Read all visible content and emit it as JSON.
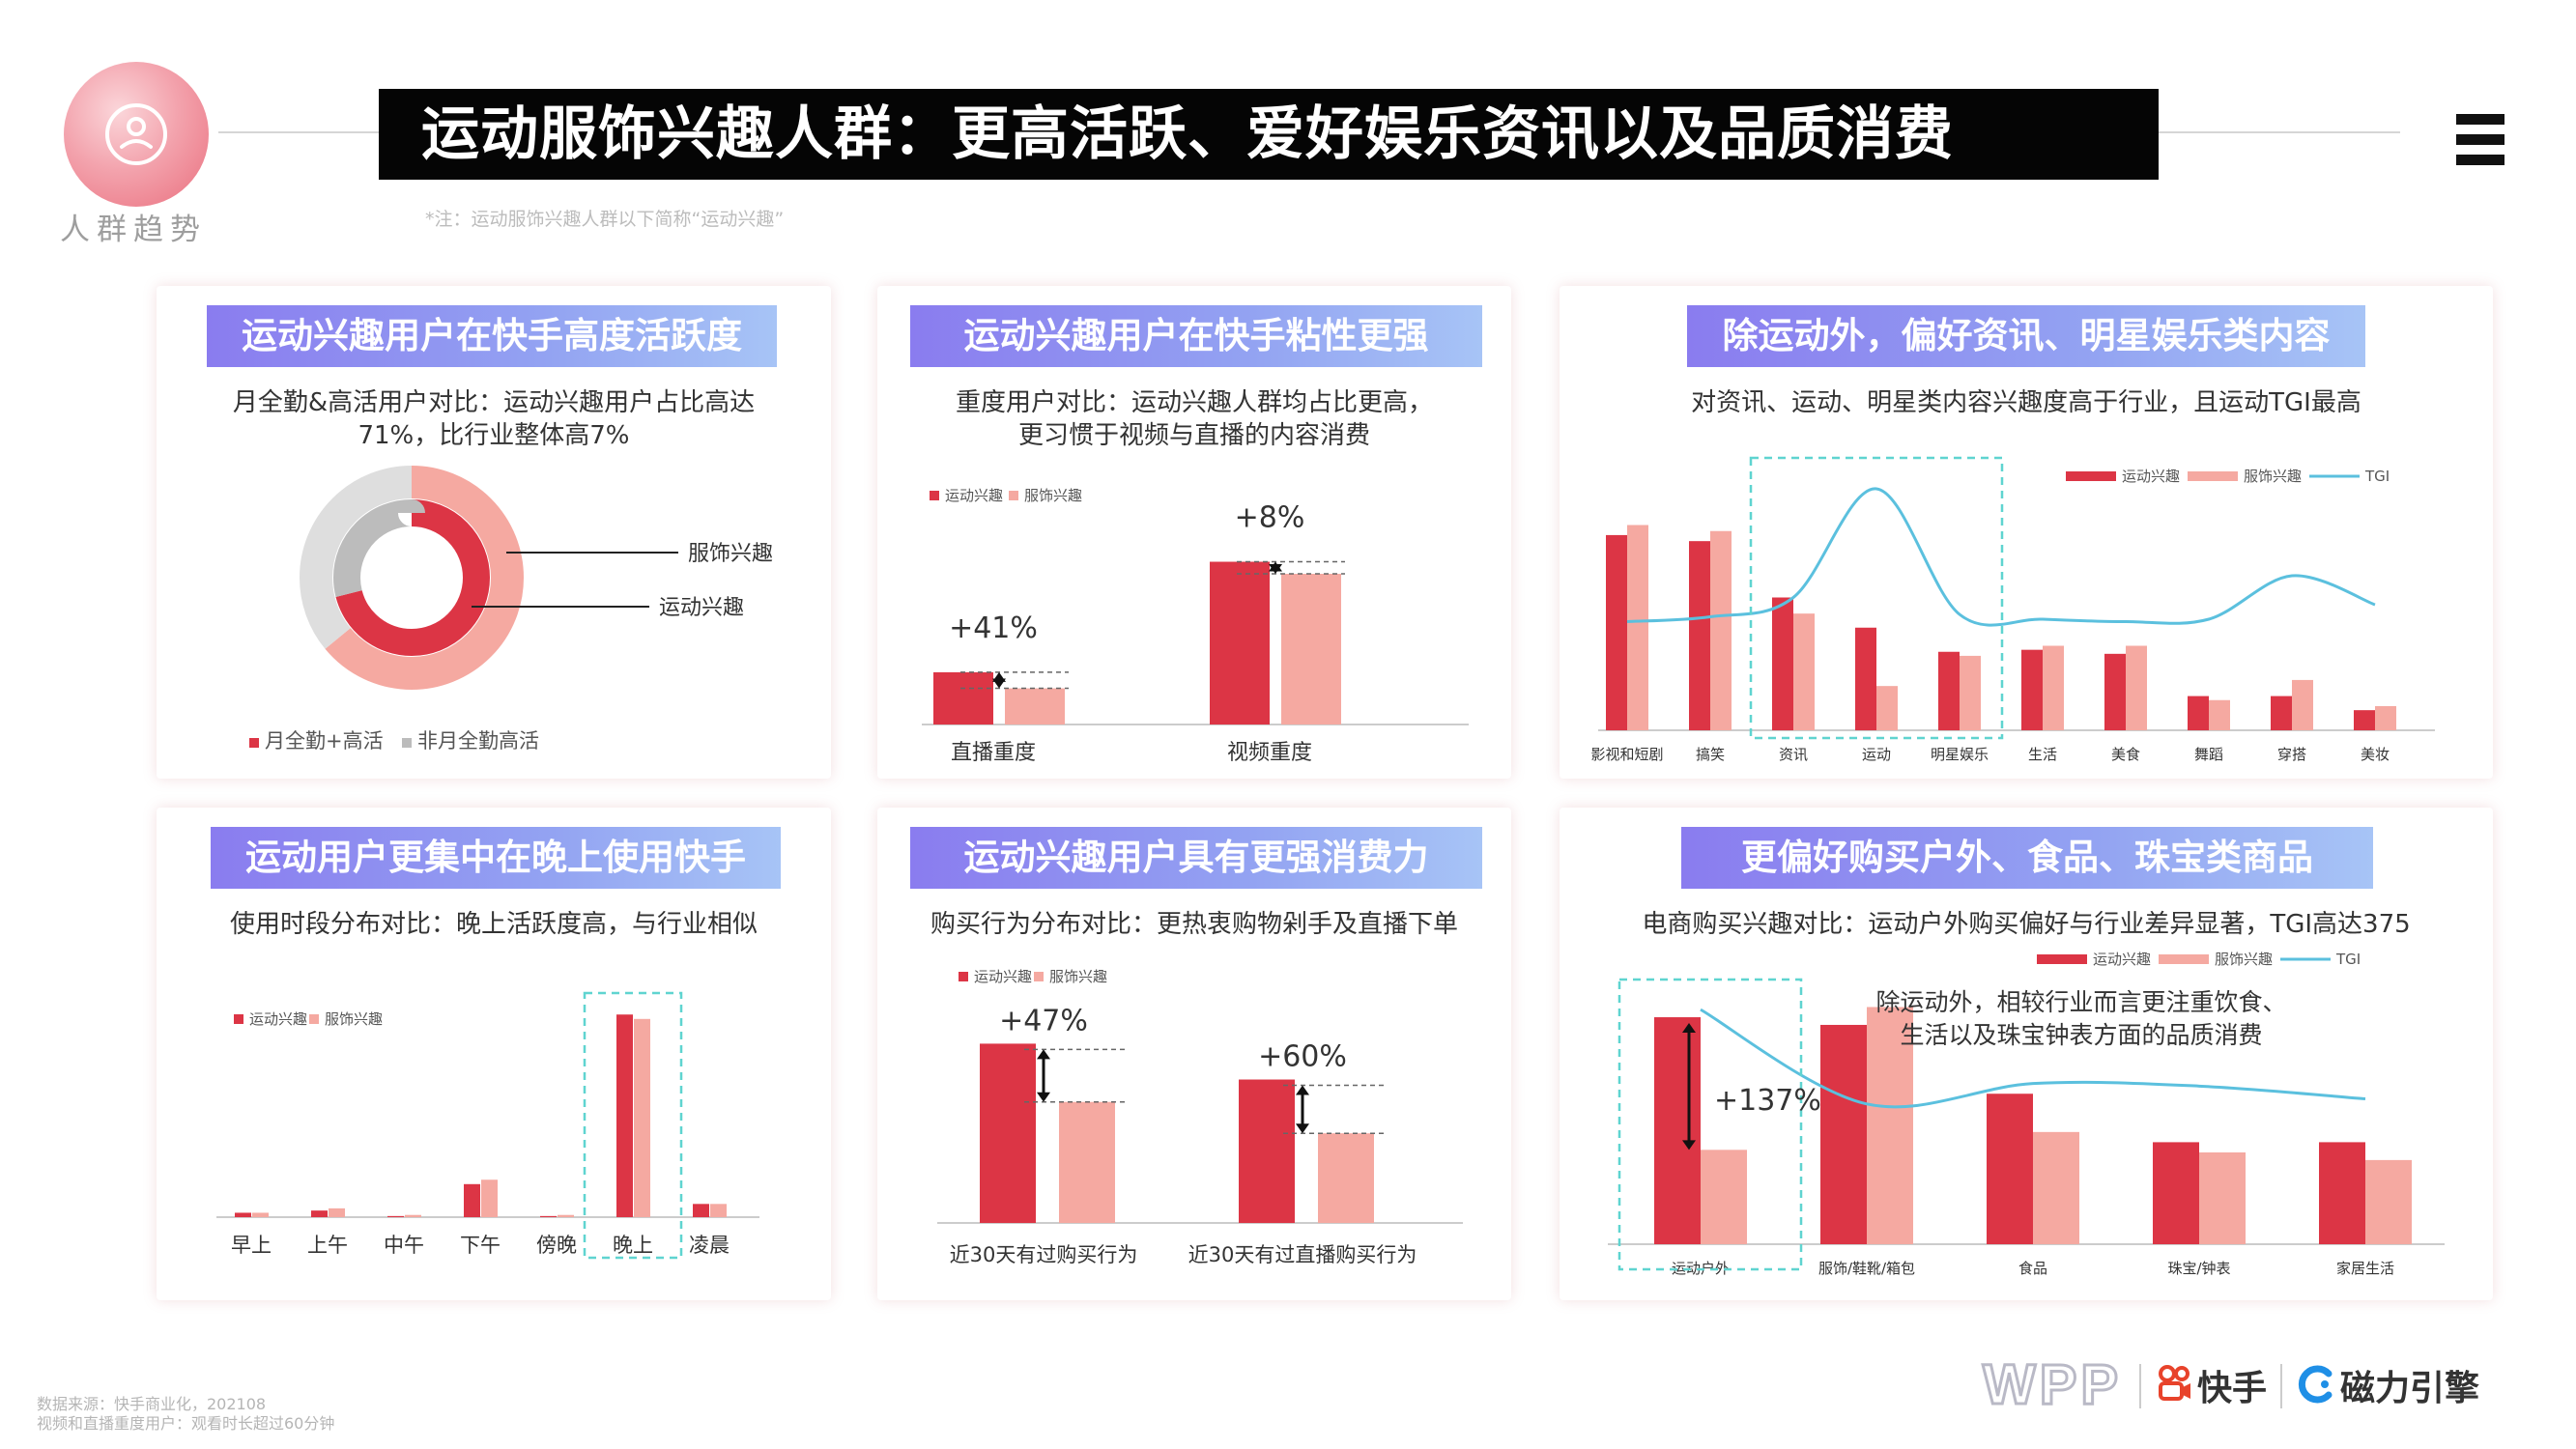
{
  "header": {
    "section_label": "人群趋势",
    "title": "运动服饰兴趣人群：更高活跃、爱好娱乐资讯以及品质消费",
    "note": "*注：运动服饰兴趣人群以下简称“运动兴趣”"
  },
  "colors": {
    "primary": "#dc3545",
    "secondary": "#f5a9a1",
    "tgi": "#5bc0de",
    "highlight": "#5fd4d0",
    "grey_dark": "#bcbcbc",
    "grey_light": "#dedede"
  },
  "panels": [
    {
      "title": "运动兴趣用户在快手高度活跃度",
      "subtitle_lines": [
        "月全勤&高活用户对比：运动兴趣用户占比高达",
        "71%，比行业整体高7%"
      ]
    },
    {
      "title": "运动兴趣用户在快手粘性更强",
      "subtitle_lines": [
        "重度用户对比：运动兴趣人群均占比更高，",
        "更习惯于视频与直播的内容消费"
      ]
    },
    {
      "title": "除运动外，偏好资讯、明星娱乐类内容",
      "subtitle_lines": [
        "对资讯、运动、明星类内容兴趣度高于行业，且运动TGI最高"
      ]
    },
    {
      "title": "运动用户更集中在晚上使用快手",
      "subtitle_lines": [
        "使用时段分布对比：晚上活跃度高，与行业相似"
      ]
    },
    {
      "title": "运动兴趣用户具有更强消费力",
      "subtitle_lines": [
        "购买行为分布对比：更热衷购物剁手及直播下单"
      ]
    },
    {
      "title": "更偏好购买户外、食品、珠宝类商品",
      "subtitle_lines": [
        "电商购买兴趣对比：运动户外购买偏好与行业差异显著，TGI高达375"
      ]
    }
  ],
  "chart_data": [
    {
      "type": "pie",
      "chart": "donut",
      "series": [
        {
          "name": "服饰兴趣",
          "values": [
            64,
            36
          ],
          "colors": [
            "#f5a9a1",
            "#dedede"
          ]
        },
        {
          "name": "运动兴趣",
          "values": [
            71,
            29
          ],
          "colors": [
            "#dc3545",
            "#bcbcbc"
          ]
        }
      ],
      "categories": [
        "月全勤+高活",
        "非月全勤高活"
      ],
      "callouts": [
        "服饰兴趣",
        "运动兴趣"
      ],
      "legend": [
        "月全勤+高活",
        "非月全勤高活"
      ]
    },
    {
      "type": "bar",
      "categories": [
        "直播重度",
        "视频重度"
      ],
      "series": [
        {
          "name": "运动兴趣",
          "values": [
            26,
            81
          ]
        },
        {
          "name": "服饰兴趣",
          "values": [
            18,
            75
          ]
        }
      ],
      "annotations": [
        "+41%",
        "+8%"
      ],
      "ylim": [
        0,
        100
      ]
    },
    {
      "type": "bar",
      "categories": [
        "影视和短剧",
        "搞笑",
        "资讯",
        "运动",
        "明星娱乐",
        "生活",
        "美食",
        "舞蹈",
        "穿搭",
        "美妆"
      ],
      "series": [
        {
          "name": "运动兴趣",
          "values": [
            97,
            94,
            66,
            51,
            39,
            40,
            38,
            17,
            17,
            10
          ]
        },
        {
          "name": "服饰兴趣",
          "values": [
            102,
            99,
            58,
            22,
            37,
            42,
            42,
            15,
            25,
            12
          ]
        }
      ],
      "line": {
        "name": "TGI",
        "values": [
          45,
          47,
          55,
          100,
          48,
          46,
          45,
          46,
          64,
          52
        ]
      },
      "highlight_range": [
        2,
        4
      ],
      "ylim": [
        0,
        120
      ]
    },
    {
      "type": "bar",
      "categories": [
        "早上",
        "上午",
        "中午",
        "下午",
        "傍晚",
        "晚上",
        "凌晨"
      ],
      "series": [
        {
          "name": "运动兴趣",
          "values": [
            2,
            3,
            0.5,
            15,
            0.5,
            92,
            6
          ]
        },
        {
          "name": "服饰兴趣",
          "values": [
            2,
            4,
            1,
            17,
            1,
            90,
            6
          ]
        }
      ],
      "highlight": 5,
      "ylim": [
        0,
        100
      ]
    },
    {
      "type": "bar",
      "categories": [
        "近30天有过购买行为",
        "近30天有过直播购买行为"
      ],
      "series": [
        {
          "name": "运动兴趣",
          "values": [
            80,
            64
          ]
        },
        {
          "name": "服饰兴趣",
          "values": [
            54,
            40
          ]
        }
      ],
      "annotations": [
        "+47%",
        "+60%"
      ],
      "ylim": [
        0,
        100
      ]
    },
    {
      "type": "bar",
      "categories": [
        "运动户外",
        "服饰/鞋靴/箱包",
        "食品",
        "珠宝/钟表",
        "家居生活"
      ],
      "series": [
        {
          "name": "运动兴趣",
          "values": [
            89,
            86,
            59,
            40,
            40
          ]
        },
        {
          "name": "服饰兴趣",
          "values": [
            37,
            93,
            44,
            36,
            33
          ]
        }
      ],
      "line": {
        "name": "TGI",
        "values": [
          92,
          55,
          63,
          62,
          57
        ]
      },
      "annotations": [
        "+137%"
      ],
      "note_lines": [
        "除运动外，相较行业而言更注重饮食、",
        "生活以及珠宝钟表方面的品质消费"
      ],
      "highlight": 0,
      "ylim": [
        0,
        100
      ]
    }
  ],
  "footer": {
    "source_lines": [
      "数据来源：快手商业化，202108",
      "视频和直播重度用户：观看时长超过60分钟"
    ],
    "brands": [
      "WPP",
      "快手",
      "磁力引擎"
    ]
  }
}
